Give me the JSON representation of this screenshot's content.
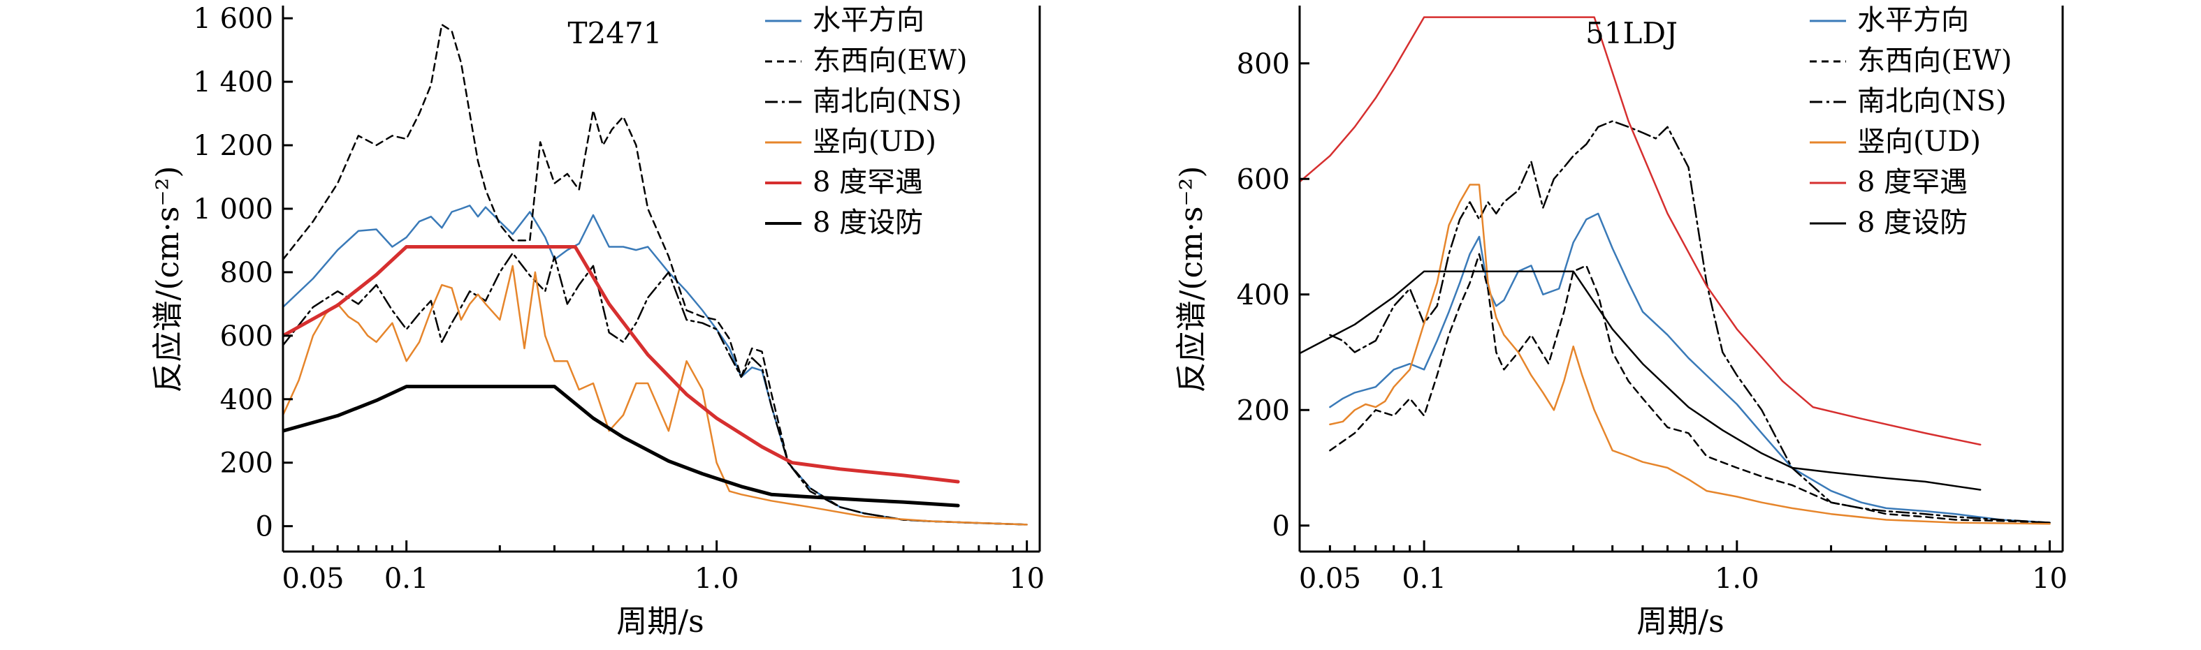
{
  "chart_data": [
    {
      "type": "line",
      "title": "T2471",
      "xlabel": "周期/s",
      "ylabel": "反应谱/(cm·s⁻²)",
      "x_scale": "log",
      "xlim": [
        0.04,
        11
      ],
      "ylim": [
        -80,
        1640
      ],
      "x_ticks": [
        0.05,
        0.1,
        1.0,
        10
      ],
      "x_tick_labels": [
        "0.05",
        "0.1",
        "1.0",
        "10"
      ],
      "y_ticks": [
        0,
        200,
        400,
        600,
        800,
        1000,
        1200,
        1400,
        1600
      ],
      "y_tick_labels": [
        "0",
        "200",
        "400",
        "600",
        "800",
        "1 000",
        "1 200",
        "1 400",
        "1 600"
      ],
      "legend": "top-right",
      "series": [
        {
          "name": "水平方向",
          "color": "#3a7ab8",
          "dash": "solid",
          "width": 2.5,
          "x": [
            0.04,
            0.05,
            0.06,
            0.07,
            0.08,
            0.09,
            0.1,
            0.11,
            0.12,
            0.13,
            0.14,
            0.15,
            0.16,
            0.17,
            0.18,
            0.2,
            0.22,
            0.25,
            0.28,
            0.3,
            0.33,
            0.36,
            0.4,
            0.45,
            0.5,
            0.55,
            0.6,
            0.7,
            0.8,
            0.9,
            1.0,
            1.1,
            1.2,
            1.3,
            1.4,
            1.5,
            1.7,
            2.0,
            2.5,
            3.0,
            4.0,
            5.0,
            7.0,
            10.0
          ],
          "y": [
            690,
            780,
            870,
            930,
            935,
            880,
            910,
            960,
            975,
            940,
            990,
            1000,
            1010,
            975,
            1005,
            960,
            920,
            990,
            910,
            840,
            870,
            890,
            980,
            880,
            880,
            870,
            880,
            800,
            740,
            680,
            620,
            560,
            470,
            500,
            490,
            380,
            200,
            120,
            60,
            40,
            20,
            15,
            10,
            5
          ]
        },
        {
          "name": "东西向(EW)",
          "color": "#000000",
          "dash": "10,7",
          "width": 2.5,
          "x": [
            0.04,
            0.05,
            0.06,
            0.07,
            0.08,
            0.09,
            0.1,
            0.11,
            0.12,
            0.13,
            0.14,
            0.15,
            0.16,
            0.17,
            0.18,
            0.2,
            0.22,
            0.25,
            0.27,
            0.3,
            0.33,
            0.36,
            0.4,
            0.43,
            0.46,
            0.5,
            0.55,
            0.6,
            0.7,
            0.8,
            0.9,
            1.0,
            1.1,
            1.2,
            1.3,
            1.4,
            1.5,
            1.7,
            2.0,
            2.5,
            3.0,
            4.0,
            5.0,
            7.0,
            10.0
          ],
          "y": [
            840,
            960,
            1080,
            1230,
            1200,
            1230,
            1220,
            1300,
            1390,
            1580,
            1560,
            1460,
            1300,
            1150,
            1060,
            950,
            900,
            900,
            1210,
            1080,
            1110,
            1060,
            1310,
            1200,
            1250,
            1290,
            1200,
            1000,
            850,
            680,
            660,
            650,
            590,
            470,
            560,
            550,
            420,
            200,
            120,
            60,
            40,
            20,
            15,
            10,
            5
          ]
        },
        {
          "name": "南北向(NS)",
          "color": "#000000",
          "dash": "18,6,4,6",
          "width": 2.5,
          "x": [
            0.04,
            0.05,
            0.06,
            0.07,
            0.08,
            0.09,
            0.1,
            0.11,
            0.12,
            0.13,
            0.14,
            0.15,
            0.16,
            0.18,
            0.2,
            0.22,
            0.25,
            0.28,
            0.3,
            0.33,
            0.36,
            0.4,
            0.45,
            0.5,
            0.55,
            0.6,
            0.7,
            0.8,
            0.9,
            1.0,
            1.1,
            1.2,
            1.3,
            1.4,
            1.5,
            1.7,
            2.0,
            2.5,
            3.0,
            4.0,
            5.0,
            7.0,
            10.0
          ],
          "y": [
            570,
            690,
            740,
            700,
            760,
            680,
            620,
            670,
            710,
            580,
            640,
            690,
            740,
            710,
            800,
            860,
            790,
            740,
            850,
            700,
            760,
            820,
            610,
            580,
            640,
            720,
            800,
            650,
            640,
            620,
            540,
            470,
            530,
            500,
            380,
            200,
            110,
            60,
            40,
            20,
            15,
            10,
            5
          ]
        },
        {
          "name": "竖向(UD)",
          "color": "#e6852b",
          "dash": "solid",
          "width": 2.5,
          "x": [
            0.04,
            0.045,
            0.05,
            0.055,
            0.06,
            0.065,
            0.07,
            0.075,
            0.08,
            0.09,
            0.1,
            0.11,
            0.12,
            0.13,
            0.14,
            0.15,
            0.16,
            0.17,
            0.18,
            0.2,
            0.22,
            0.24,
            0.26,
            0.28,
            0.3,
            0.33,
            0.36,
            0.4,
            0.45,
            0.5,
            0.55,
            0.6,
            0.7,
            0.8,
            0.9,
            1.0,
            1.1,
            1.2,
            1.5,
            2.0,
            3.0,
            5.0,
            10.0
          ],
          "y": [
            350,
            460,
            600,
            670,
            700,
            660,
            640,
            600,
            580,
            640,
            520,
            580,
            680,
            760,
            750,
            650,
            700,
            730,
            700,
            650,
            820,
            560,
            800,
            600,
            520,
            520,
            430,
            450,
            300,
            350,
            450,
            450,
            300,
            520,
            430,
            200,
            110,
            100,
            80,
            60,
            30,
            15,
            5
          ]
        },
        {
          "name": "8 度罕遇",
          "color": "#d62f2f",
          "dash": "solid",
          "width": 5,
          "x": [
            0.04,
            0.06,
            0.08,
            0.1,
            0.2,
            0.35,
            0.45,
            0.6,
            0.8,
            1.0,
            1.4,
            1.75,
            2.5,
            4.0,
            6.0
          ],
          "y": [
            600,
            696,
            792,
            880,
            880,
            880,
            700,
            540,
            415,
            340,
            250,
            200,
            180,
            160,
            140
          ]
        },
        {
          "name": "8 度设防",
          "color": "#000000",
          "dash": "solid",
          "width": 5,
          "x": [
            0.04,
            0.06,
            0.08,
            0.1,
            0.2,
            0.3,
            0.4,
            0.5,
            0.7,
            0.9,
            1.2,
            1.5,
            2.0,
            3.0,
            4.0,
            6.0
          ],
          "y": [
            300,
            348,
            396,
            440,
            440,
            440,
            340,
            280,
            205,
            165,
            125,
            100,
            92,
            82,
            76,
            65
          ]
        }
      ]
    },
    {
      "type": "line",
      "title": "51LDJ",
      "xlabel": "周期/s",
      "ylabel": "反应谱/(cm·s⁻²)",
      "x_scale": "log",
      "xlim": [
        0.04,
        11
      ],
      "ylim": [
        -45,
        900
      ],
      "x_ticks": [
        0.05,
        0.1,
        1.0,
        10
      ],
      "x_tick_labels": [
        "0.05",
        "0.1",
        "1.0",
        "10"
      ],
      "y_ticks": [
        0,
        200,
        400,
        600,
        800
      ],
      "y_tick_labels": [
        "0",
        "200",
        "400",
        "600",
        "800"
      ],
      "legend": "top-right",
      "series": [
        {
          "name": "水平方向",
          "color": "#3a7ab8",
          "dash": "solid",
          "width": 2.5,
          "x": [
            0.05,
            0.055,
            0.06,
            0.07,
            0.08,
            0.09,
            0.1,
            0.11,
            0.12,
            0.13,
            0.14,
            0.15,
            0.16,
            0.17,
            0.18,
            0.2,
            0.22,
            0.24,
            0.27,
            0.3,
            0.33,
            0.36,
            0.4,
            0.45,
            0.5,
            0.6,
            0.7,
            0.8,
            1.0,
            1.2,
            1.5,
            2.0,
            2.5,
            3.0,
            4.0,
            5.0,
            7.0,
            10.0
          ],
          "y": [
            205,
            220,
            230,
            240,
            270,
            280,
            270,
            320,
            370,
            420,
            470,
            500,
            410,
            380,
            390,
            440,
            450,
            400,
            410,
            490,
            530,
            540,
            480,
            420,
            370,
            330,
            290,
            260,
            210,
            160,
            100,
            60,
            40,
            30,
            25,
            20,
            10,
            5
          ]
        },
        {
          "name": "东西向(EW)",
          "color": "#000000",
          "dash": "10,7",
          "width": 2.5,
          "x": [
            0.05,
            0.06,
            0.07,
            0.08,
            0.09,
            0.1,
            0.11,
            0.12,
            0.13,
            0.14,
            0.15,
            0.16,
            0.17,
            0.18,
            0.2,
            0.22,
            0.25,
            0.28,
            0.3,
            0.33,
            0.36,
            0.4,
            0.45,
            0.5,
            0.6,
            0.7,
            0.8,
            1.0,
            1.2,
            1.5,
            2.0,
            2.5,
            3.0,
            4.0,
            5.0,
            7.0,
            10.0
          ],
          "y": [
            130,
            160,
            200,
            190,
            220,
            190,
            260,
            330,
            380,
            420,
            470,
            410,
            300,
            270,
            300,
            330,
            280,
            370,
            440,
            450,
            400,
            300,
            250,
            220,
            170,
            160,
            120,
            100,
            85,
            70,
            40,
            30,
            20,
            15,
            10,
            8,
            5
          ]
        },
        {
          "name": "南北向(NS)",
          "color": "#000000",
          "dash": "18,6,4,6",
          "width": 2.5,
          "x": [
            0.05,
            0.055,
            0.06,
            0.07,
            0.08,
            0.09,
            0.1,
            0.11,
            0.12,
            0.13,
            0.14,
            0.15,
            0.16,
            0.17,
            0.18,
            0.2,
            0.22,
            0.24,
            0.26,
            0.28,
            0.3,
            0.33,
            0.36,
            0.4,
            0.45,
            0.5,
            0.55,
            0.6,
            0.7,
            0.8,
            0.9,
            1.0,
            1.2,
            1.5,
            2.0,
            2.5,
            3.0,
            4.0,
            5.0,
            7.0,
            10.0
          ],
          "y": [
            330,
            320,
            300,
            320,
            380,
            410,
            350,
            380,
            470,
            530,
            560,
            530,
            560,
            540,
            560,
            580,
            630,
            550,
            600,
            620,
            640,
            660,
            690,
            700,
            690,
            680,
            670,
            690,
            620,
            420,
            300,
            260,
            200,
            100,
            40,
            30,
            25,
            20,
            15,
            10,
            5
          ]
        },
        {
          "name": "竖向(UD)",
          "color": "#e6852b",
          "dash": "solid",
          "width": 2.5,
          "x": [
            0.05,
            0.055,
            0.06,
            0.065,
            0.07,
            0.075,
            0.08,
            0.09,
            0.1,
            0.11,
            0.12,
            0.13,
            0.14,
            0.15,
            0.16,
            0.17,
            0.18,
            0.2,
            0.22,
            0.24,
            0.26,
            0.28,
            0.3,
            0.32,
            0.35,
            0.4,
            0.45,
            0.5,
            0.6,
            0.7,
            0.8,
            1.0,
            1.2,
            1.5,
            2.0,
            3.0,
            5.0,
            10.0
          ],
          "y": [
            175,
            180,
            200,
            210,
            205,
            215,
            240,
            270,
            350,
            420,
            520,
            560,
            590,
            590,
            420,
            360,
            330,
            300,
            260,
            230,
            200,
            250,
            310,
            260,
            200,
            130,
            120,
            110,
            100,
            80,
            60,
            50,
            40,
            30,
            20,
            10,
            5,
            3
          ]
        },
        {
          "name": "8 度罕遇",
          "color": "#d62f2f",
          "dash": "solid",
          "width": 2.5,
          "x": [
            0.04,
            0.05,
            0.06,
            0.07,
            0.08,
            0.1,
            0.2,
            0.35,
            0.45,
            0.6,
            0.8,
            1.0,
            1.4,
            1.75,
            2.5,
            4.0,
            6.0
          ],
          "y": [
            595,
            640,
            690,
            740,
            790,
            880,
            880,
            880,
            700,
            540,
            415,
            340,
            250,
            205,
            185,
            160,
            140
          ]
        },
        {
          "name": "8 度设防",
          "color": "#000000",
          "dash": "solid",
          "width": 2.5,
          "x": [
            0.04,
            0.06,
            0.08,
            0.1,
            0.2,
            0.3,
            0.4,
            0.5,
            0.7,
            0.9,
            1.2,
            1.5,
            2.0,
            3.0,
            4.0,
            6.0
          ],
          "y": [
            298,
            348,
            396,
            440,
            440,
            440,
            340,
            280,
            205,
            165,
            125,
            100,
            92,
            82,
            76,
            62
          ]
        }
      ]
    }
  ]
}
